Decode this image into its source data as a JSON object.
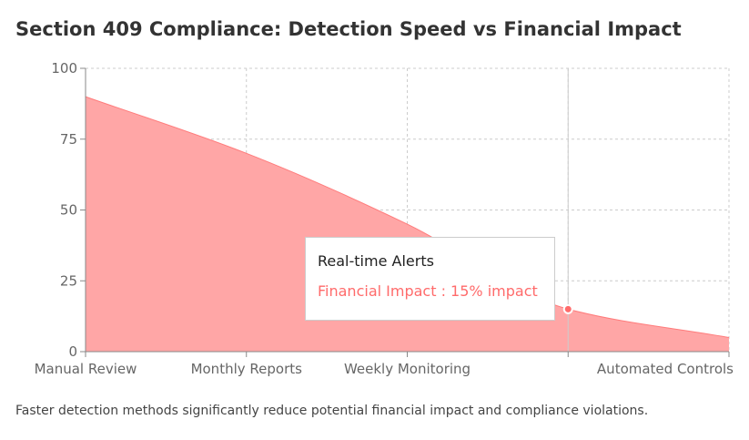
{
  "title": "Section 409 Compliance: Detection Speed vs Financial Impact",
  "caption": "Faster detection methods significantly reduce potential financial impact and compliance violations.",
  "colors": {
    "area_fill": "#ffa6a6",
    "area_stroke": "#ff7c7c",
    "tooltip_accent": "#ff6b6b",
    "grid": "#cccccc",
    "axis": "#888888",
    "cursor": "#cccccc"
  },
  "tooltip": {
    "title": "Real-time Alerts",
    "series_label": "Financial Impact",
    "separator": " : ",
    "value": "15% impact"
  },
  "chart_data": {
    "type": "area",
    "categories": [
      "Manual Review",
      "Monthly Reports",
      "Weekly Monitoring",
      "Real-time Alerts",
      "Automated Controls"
    ],
    "visible_category_labels": [
      "Manual Review",
      "Monthly Reports",
      "Weekly Monitoring",
      "",
      "Automated Controls"
    ],
    "series": [
      {
        "values": [
          90,
          70,
          45,
          15,
          5
        ]
      }
    ],
    "ylim": [
      0,
      100
    ],
    "yticks": [
      0,
      25,
      50,
      75,
      100
    ],
    "grid": true,
    "active_index": 3
  }
}
